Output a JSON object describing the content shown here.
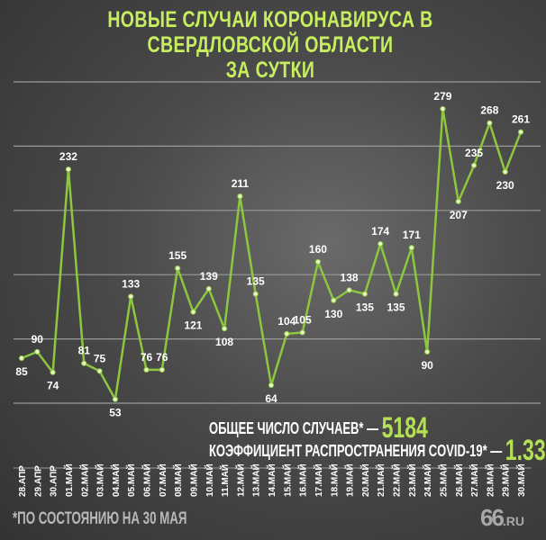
{
  "title_line1": "НОВЫЕ СЛУЧАИ КОРОНАВИРУСА В СВЕРДЛОВСКОЙ ОБЛАСТИ",
  "title_line2": "ЗА СУТКИ",
  "stats": {
    "total_label": "ОБЩЕЕ ЧИСЛО СЛУЧАЕВ* —",
    "total_value": "5184",
    "rate_label": "КОЭФФИЦИЕНТ РАСПРОСТРАНЕНИЯ COVID-19* —",
    "rate_value": "1.33"
  },
  "footnote": "*ПО СОСТОЯНИЮ НА 30 МАЯ",
  "logo": {
    "main": "66",
    "suffix": ".RU"
  },
  "colors": {
    "line": "#8dc63f",
    "title": "#c6ee5e",
    "background": "#4a4a4a"
  },
  "chart_data": {
    "type": "line",
    "categories": [
      "28.АПР",
      "29.АПР",
      "30.АПР",
      "01.МАЙ",
      "02.МАЙ",
      "03.МАЙ",
      "04.МАЙ",
      "05.МАЙ",
      "06.МАЙ",
      "07.МАЙ",
      "08.МАЙ",
      "09.МАЙ",
      "10.МАЙ",
      "11.МАЙ",
      "12.МАЙ",
      "13.МАЙ",
      "14.МАЙ",
      "15.МАЙ",
      "16.МАЙ",
      "17.МАЙ",
      "18.МАЙ",
      "19.МАЙ",
      "20.МАЙ",
      "21.МАЙ",
      "22.МАЙ",
      "23.МАЙ",
      "24.МАЙ",
      "25.МАЙ",
      "26.МАЙ",
      "27.МАЙ",
      "28.МАЙ",
      "29.МАЙ",
      "30.МАЙ"
    ],
    "values": [
      85,
      90,
      74,
      232,
      81,
      75,
      53,
      133,
      76,
      76,
      155,
      121,
      139,
      108,
      211,
      135,
      64,
      104,
      105,
      160,
      130,
      138,
      135,
      174,
      135,
      171,
      90,
      279,
      207,
      235,
      268,
      230,
      261
    ],
    "ylim": [
      50,
      300
    ],
    "grid": true,
    "grid_step": 50
  }
}
